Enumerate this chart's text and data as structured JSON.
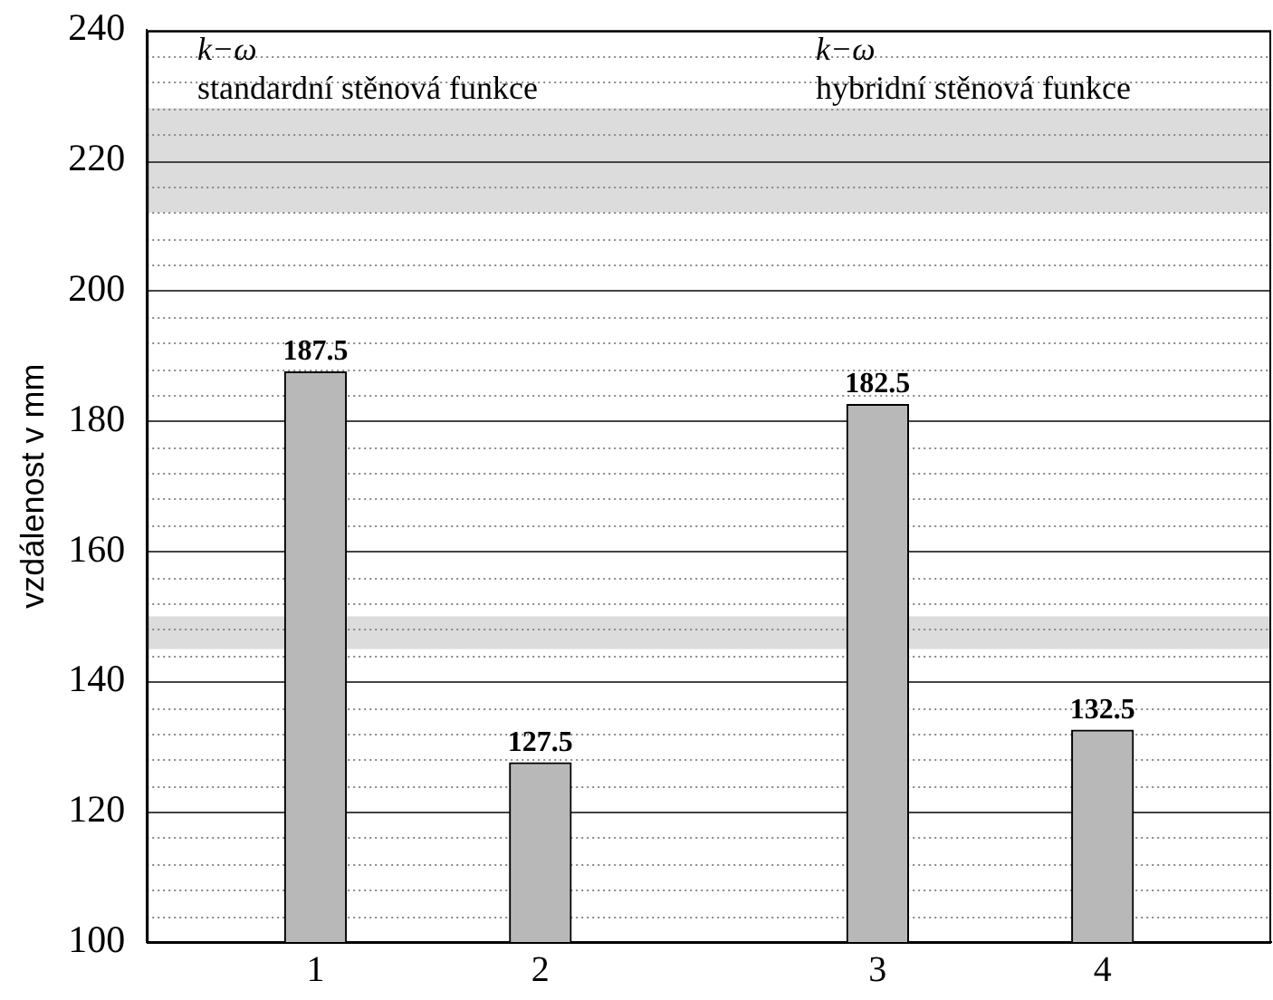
{
  "chart_data": {
    "type": "bar",
    "ylabel": "vzdálenost v mm",
    "categories": [
      null,
      "1",
      null,
      "2",
      null,
      null,
      "3",
      null,
      "4",
      null
    ],
    "values": [
      null,
      187.5,
      null,
      127.5,
      null,
      null,
      182.5,
      null,
      132.5,
      null
    ],
    "color": "#b8b8b8",
    "ylim": [
      100,
      240
    ],
    "yticks": [
      100,
      {
        "value": 104,
        "label": null
      },
      {
        "value": 108,
        "label": null
      },
      {
        "value": 112,
        "label": null
      },
      {
        "value": 116,
        "label": null
      },
      120,
      {
        "value": 124,
        "label": null
      },
      {
        "value": 128,
        "label": null
      },
      {
        "value": 132,
        "label": null
      },
      {
        "value": 136,
        "label": null
      },
      140,
      {
        "value": 144,
        "label": null
      },
      {
        "value": 148,
        "label": null
      },
      {
        "value": 152,
        "label": null
      },
      {
        "value": 156,
        "label": null
      },
      160,
      {
        "value": 164,
        "label": null
      },
      {
        "value": 168,
        "label": null
      },
      {
        "value": 172,
        "label": null
      },
      {
        "value": 176,
        "label": null
      },
      180,
      {
        "value": 184,
        "label": null
      },
      {
        "value": 188,
        "label": null
      },
      {
        "value": 192,
        "label": null
      },
      {
        "value": 196,
        "label": null
      },
      200,
      {
        "value": 204,
        "label": null
      },
      {
        "value": 208,
        "label": null
      },
      {
        "value": 212,
        "label": null
      },
      {
        "value": 216,
        "label": null
      },
      220,
      {
        "value": 224,
        "label": null
      },
      {
        "value": 228,
        "label": null
      },
      {
        "value": 232,
        "label": null
      },
      {
        "value": 236,
        "label": null
      },
      240
    ],
    "bands": [
      {
        "axis": "y",
        "from": 212,
        "to": 228,
        "color": "#dcdcdc"
      },
      {
        "axis": "y",
        "from": 145,
        "to": 150,
        "color": "#dcdcdc"
      }
    ],
    "grid": true,
    "data_labels": true,
    "annotations": [
      "k−ω",
      "standardní stěnová funkce",
      "k−ω",
      "hybridní stěnová funkce"
    ]
  }
}
